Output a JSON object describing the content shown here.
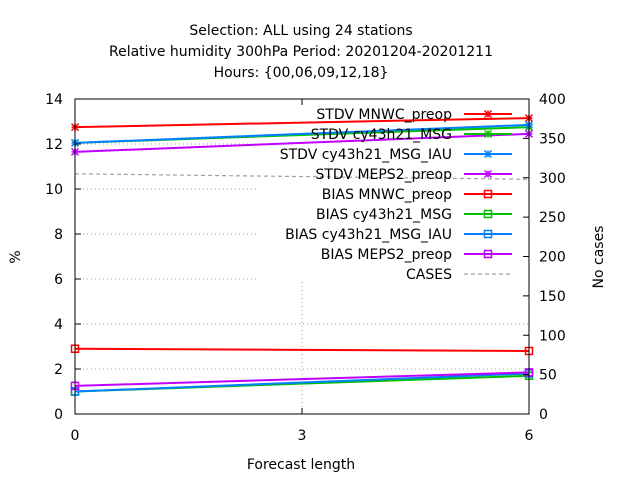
{
  "chart_data": {
    "type": "line",
    "title_lines": [
      "Selection: ALL using    24 stations",
      "Relative humidity 300hPa   Period: 20201204-20201211",
      "Hours: {00,06,09,12,18}"
    ],
    "xlabel": "Forecast length",
    "ylabel": "%",
    "y2label": "No cases",
    "x": [
      0,
      6
    ],
    "xticks": [
      "0",
      "3",
      "6"
    ],
    "xlim": [
      0,
      6
    ],
    "ylim": [
      0,
      14
    ],
    "yticks": [
      "0",
      "2",
      "4",
      "6",
      "8",
      "10",
      "12",
      "14"
    ],
    "y2lim": [
      0,
      400
    ],
    "y2ticks": [
      "0",
      "50",
      "100",
      "150",
      "200",
      "250",
      "300",
      "350",
      "400"
    ],
    "grid": true,
    "legend_position": "top-right",
    "series": [
      {
        "name": "STDV MNWC_preop",
        "values": [
          12.75,
          13.15
        ],
        "color": "#ff0000",
        "marker": "star",
        "axis": "y"
      },
      {
        "name": "STDV cy43h21_MSG",
        "values": [
          12.05,
          12.75
        ],
        "color": "#00c000",
        "marker": "star",
        "axis": "y"
      },
      {
        "name": "STDV cy43h21_MSG_IAU",
        "values": [
          12.05,
          12.85
        ],
        "color": "#0080ff",
        "marker": "star",
        "axis": "y"
      },
      {
        "name": "STDV MEPS2_preop",
        "values": [
          11.65,
          12.45
        ],
        "color": "#c000ff",
        "marker": "star",
        "axis": "y"
      },
      {
        "name": "BIAS MNWC_preop",
        "values": [
          2.9,
          2.8
        ],
        "color": "#ff0000",
        "marker": "square",
        "axis": "y"
      },
      {
        "name": "BIAS cy43h21_MSG",
        "values": [
          1.0,
          1.7
        ],
        "color": "#00c000",
        "marker": "square",
        "axis": "y"
      },
      {
        "name": "BIAS cy43h21_MSG_IAU",
        "values": [
          1.0,
          1.8
        ],
        "color": "#0080ff",
        "marker": "square",
        "axis": "y"
      },
      {
        "name": "BIAS MEPS2_preop",
        "values": [
          1.25,
          1.85
        ],
        "color": "#c000ff",
        "marker": "square",
        "axis": "y"
      },
      {
        "name": "CASES",
        "values": [
          305,
          298
        ],
        "color": "#a0a0a0",
        "marker": "none",
        "dash": true,
        "axis": "y2"
      }
    ]
  }
}
